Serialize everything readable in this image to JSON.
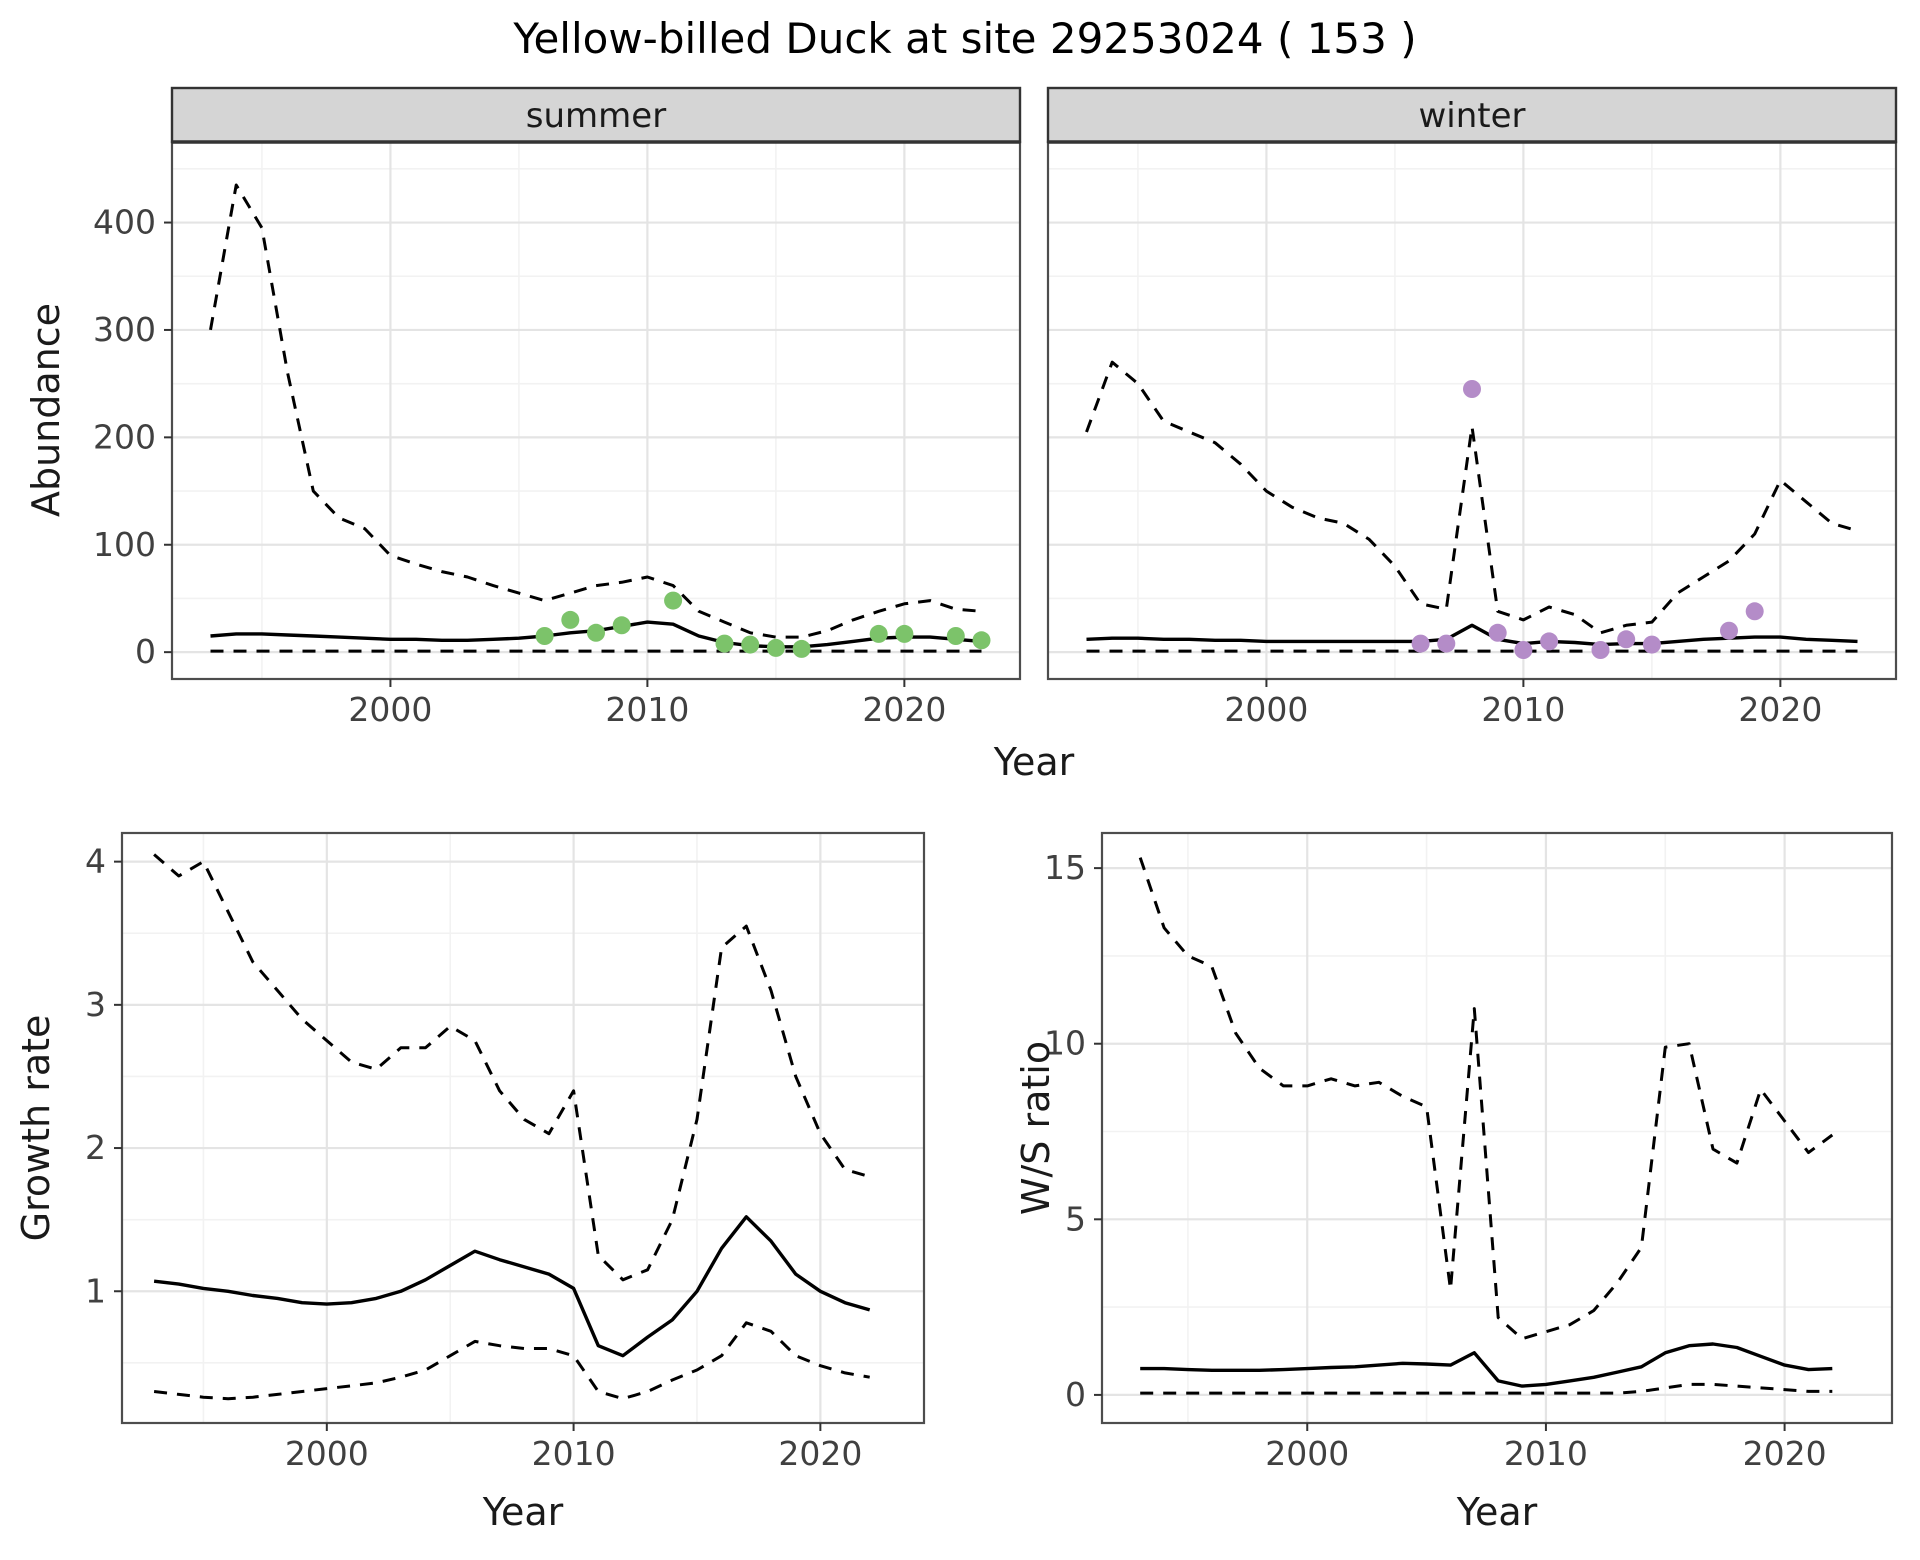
{
  "title": "Yellow-billed Duck at site 29253024 ( 153 )",
  "colors": {
    "line": "#000000",
    "grid_major": "#E4E4E4",
    "grid_minor": "#F2F2F2",
    "panel_border": "#4D4D4D",
    "strip_background": "#D5D5D5",
    "strip_border": "#333333",
    "tick_text": "#404040",
    "summer_point": "#7CC36A",
    "winter_point": "#B48CC8"
  },
  "chart_data": [
    {
      "id": "abundance-summer",
      "type": "line",
      "facet_label": "summer",
      "xlabel": "Year",
      "ylabel": "Abundance",
      "x_domain": [
        1991.5,
        2024.5
      ],
      "y_domain": [
        -25,
        475
      ],
      "x_ticks": [
        2000,
        2010,
        2020
      ],
      "y_ticks": [
        0,
        100,
        200,
        300,
        400
      ],
      "series": [
        {
          "name": "upper-ci",
          "style": "dashed",
          "x": [
            1993,
            1994,
            1995,
            1996,
            1997,
            1998,
            1999,
            2000,
            2001,
            2002,
            2003,
            2004,
            2005,
            2006,
            2007,
            2008,
            2009,
            2010,
            2011,
            2012,
            2013,
            2014,
            2015,
            2016,
            2017,
            2018,
            2019,
            2020,
            2021,
            2022,
            2023
          ],
          "y": [
            300,
            435,
            395,
            260,
            150,
            125,
            115,
            90,
            82,
            75,
            70,
            62,
            55,
            48,
            55,
            62,
            65,
            70,
            62,
            38,
            28,
            18,
            14,
            14,
            20,
            30,
            38,
            45,
            48,
            40,
            38
          ]
        },
        {
          "name": "mean",
          "style": "solid",
          "x": [
            1993,
            1994,
            1995,
            1996,
            1997,
            1998,
            1999,
            2000,
            2001,
            2002,
            2003,
            2004,
            2005,
            2006,
            2007,
            2008,
            2009,
            2010,
            2011,
            2012,
            2013,
            2014,
            2015,
            2016,
            2017,
            2018,
            2019,
            2020,
            2021,
            2022,
            2023
          ],
          "y": [
            15,
            17,
            17,
            16,
            15,
            14,
            13,
            12,
            12,
            11,
            11,
            12,
            13,
            15,
            18,
            20,
            24,
            28,
            26,
            15,
            9,
            6,
            5,
            5,
            7,
            10,
            13,
            14,
            14,
            12,
            10
          ]
        },
        {
          "name": "lower-ci",
          "style": "dashed",
          "x": [
            1993,
            1994,
            1995,
            1996,
            1997,
            1998,
            1999,
            2000,
            2001,
            2002,
            2003,
            2004,
            2005,
            2006,
            2007,
            2008,
            2009,
            2010,
            2011,
            2012,
            2013,
            2014,
            2015,
            2016,
            2017,
            2018,
            2019,
            2020,
            2021,
            2022,
            2023
          ],
          "y": [
            1,
            1,
            1,
            1,
            1,
            1,
            1,
            1,
            1,
            1,
            1,
            1,
            1,
            1,
            1,
            1,
            1,
            1,
            1,
            1,
            1,
            1,
            1,
            1,
            1,
            1,
            1,
            1,
            1,
            1,
            1
          ]
        }
      ],
      "points": {
        "name": "observed",
        "color": "#7CC36A",
        "x": [
          2006,
          2007,
          2008,
          2009,
          2011,
          2013,
          2014,
          2015,
          2016,
          2019,
          2020,
          2022,
          2023
        ],
        "y": [
          15,
          30,
          18,
          25,
          48,
          8,
          7,
          4,
          3,
          17,
          17,
          15,
          11
        ]
      }
    },
    {
      "id": "abundance-winter",
      "type": "line",
      "facet_label": "winter",
      "xlabel": "Year",
      "ylabel": "Abundance",
      "x_domain": [
        1991.5,
        2024.5
      ],
      "y_domain": [
        -25,
        475
      ],
      "x_ticks": [
        2000,
        2010,
        2020
      ],
      "y_ticks": [
        0,
        100,
        200,
        300,
        400
      ],
      "series": [
        {
          "name": "upper-ci",
          "style": "dashed",
          "x": [
            1993,
            1994,
            1995,
            1996,
            1997,
            1998,
            1999,
            2000,
            2001,
            2002,
            2003,
            2004,
            2005,
            2006,
            2007,
            2008,
            2009,
            2010,
            2011,
            2012,
            2013,
            2014,
            2015,
            2016,
            2017,
            2018,
            2019,
            2020,
            2021,
            2022,
            2023
          ],
          "y": [
            205,
            270,
            250,
            215,
            205,
            195,
            175,
            150,
            135,
            125,
            120,
            105,
            80,
            45,
            40,
            210,
            38,
            30,
            42,
            35,
            18,
            25,
            28,
            55,
            70,
            85,
            110,
            160,
            140,
            120,
            113
          ]
        },
        {
          "name": "mean",
          "style": "solid",
          "x": [
            1993,
            1994,
            1995,
            1996,
            1997,
            1998,
            1999,
            2000,
            2001,
            2002,
            2003,
            2004,
            2005,
            2006,
            2007,
            2008,
            2009,
            2010,
            2011,
            2012,
            2013,
            2014,
            2015,
            2016,
            2017,
            2018,
            2019,
            2020,
            2021,
            2022,
            2023
          ],
          "y": [
            12,
            13,
            13,
            12,
            12,
            11,
            11,
            10,
            10,
            10,
            10,
            10,
            10,
            10,
            12,
            25,
            12,
            8,
            10,
            9,
            7,
            8,
            8,
            10,
            12,
            13,
            14,
            14,
            12,
            11,
            10
          ]
        },
        {
          "name": "lower-ci",
          "style": "dashed",
          "x": [
            1993,
            1994,
            1995,
            1996,
            1997,
            1998,
            1999,
            2000,
            2001,
            2002,
            2003,
            2004,
            2005,
            2006,
            2007,
            2008,
            2009,
            2010,
            2011,
            2012,
            2013,
            2014,
            2015,
            2016,
            2017,
            2018,
            2019,
            2020,
            2021,
            2022,
            2023
          ],
          "y": [
            1,
            1,
            1,
            1,
            1,
            1,
            1,
            1,
            1,
            1,
            1,
            1,
            1,
            1,
            1,
            1,
            1,
            1,
            1,
            1,
            1,
            1,
            1,
            1,
            1,
            1,
            1,
            1,
            1,
            1,
            1
          ]
        }
      ],
      "points": {
        "name": "observed",
        "color": "#B48CC8",
        "x": [
          2006,
          2007,
          2008,
          2009,
          2010,
          2011,
          2013,
          2014,
          2015,
          2018,
          2019
        ],
        "y": [
          8,
          8,
          245,
          18,
          2,
          10,
          2,
          12,
          7,
          20,
          38
        ]
      }
    },
    {
      "id": "growth-rate",
      "type": "line",
      "xlabel": "Year",
      "ylabel": "Growth rate",
      "x_domain": [
        1991.7,
        2024.2
      ],
      "y_domain": [
        0.08,
        4.2
      ],
      "x_ticks": [
        2000,
        2010,
        2020
      ],
      "y_ticks": [
        1,
        2,
        3,
        4
      ],
      "series": [
        {
          "name": "upper-ci",
          "style": "dashed",
          "x": [
            1993,
            1994,
            1995,
            1996,
            1997,
            1998,
            1999,
            2000,
            2001,
            2002,
            2003,
            2004,
            2005,
            2006,
            2007,
            2008,
            2009,
            2010,
            2011,
            2012,
            2013,
            2014,
            2015,
            2016,
            2017,
            2018,
            2019,
            2020,
            2021,
            2022
          ],
          "y": [
            4.05,
            3.9,
            4.0,
            3.65,
            3.3,
            3.1,
            2.9,
            2.75,
            2.6,
            2.55,
            2.7,
            2.7,
            2.85,
            2.75,
            2.4,
            2.2,
            2.1,
            2.4,
            1.25,
            1.08,
            1.15,
            1.5,
            2.2,
            3.4,
            3.55,
            3.1,
            2.5,
            2.1,
            1.85,
            1.8
          ]
        },
        {
          "name": "mean",
          "style": "solid",
          "x": [
            1993,
            1994,
            1995,
            1996,
            1997,
            1998,
            1999,
            2000,
            2001,
            2002,
            2003,
            2004,
            2005,
            2006,
            2007,
            2008,
            2009,
            2010,
            2011,
            2012,
            2013,
            2014,
            2015,
            2016,
            2017,
            2018,
            2019,
            2020,
            2021,
            2022
          ],
          "y": [
            1.07,
            1.05,
            1.02,
            1.0,
            0.97,
            0.95,
            0.92,
            0.91,
            0.92,
            0.95,
            1.0,
            1.08,
            1.18,
            1.28,
            1.22,
            1.17,
            1.12,
            1.02,
            0.62,
            0.55,
            0.68,
            0.8,
            1.0,
            1.3,
            1.52,
            1.35,
            1.12,
            1.0,
            0.92,
            0.87
          ]
        },
        {
          "name": "lower-ci",
          "style": "dashed",
          "x": [
            1993,
            1994,
            1995,
            1996,
            1997,
            1998,
            1999,
            2000,
            2001,
            2002,
            2003,
            2004,
            2005,
            2006,
            2007,
            2008,
            2009,
            2010,
            2011,
            2012,
            2013,
            2014,
            2015,
            2016,
            2017,
            2018,
            2019,
            2020,
            2021,
            2022
          ],
          "y": [
            0.3,
            0.28,
            0.26,
            0.25,
            0.26,
            0.28,
            0.3,
            0.32,
            0.34,
            0.36,
            0.4,
            0.45,
            0.55,
            0.65,
            0.62,
            0.6,
            0.6,
            0.55,
            0.3,
            0.25,
            0.3,
            0.38,
            0.45,
            0.55,
            0.78,
            0.72,
            0.55,
            0.48,
            0.43,
            0.4
          ]
        }
      ]
    },
    {
      "id": "ws-ratio",
      "type": "line",
      "xlabel": "Year",
      "ylabel": "W/S ratio",
      "x_domain": [
        1991.4,
        2024.5
      ],
      "y_domain": [
        -0.8,
        16
      ],
      "x_ticks": [
        2000,
        2010,
        2020
      ],
      "y_ticks": [
        0,
        5,
        10,
        15
      ],
      "series": [
        {
          "name": "upper-ci",
          "style": "dashed",
          "x": [
            1993,
            1994,
            1995,
            1996,
            1997,
            1998,
            1999,
            2000,
            2001,
            2002,
            2003,
            2004,
            2005,
            2006,
            2007,
            2008,
            2009,
            2010,
            2011,
            2012,
            2013,
            2014,
            2015,
            2016,
            2017,
            2018,
            2019,
            2020,
            2021,
            2022
          ],
          "y": [
            15.3,
            13.3,
            12.5,
            12.2,
            10.3,
            9.3,
            8.8,
            8.8,
            9.0,
            8.8,
            8.9,
            8.5,
            8.2,
            3.0,
            11.0,
            2.2,
            1.6,
            1.8,
            2.0,
            2.4,
            3.2,
            4.2,
            9.9,
            10.0,
            7.0,
            6.6,
            8.7,
            7.8,
            6.9,
            7.4
          ]
        },
        {
          "name": "mean",
          "style": "solid",
          "x": [
            1993,
            1994,
            1995,
            1996,
            1997,
            1998,
            1999,
            2000,
            2001,
            2002,
            2003,
            2004,
            2005,
            2006,
            2007,
            2008,
            2009,
            2010,
            2011,
            2012,
            2013,
            2014,
            2015,
            2016,
            2017,
            2018,
            2019,
            2020,
            2021,
            2022
          ],
          "y": [
            0.75,
            0.75,
            0.72,
            0.7,
            0.7,
            0.7,
            0.72,
            0.75,
            0.78,
            0.8,
            0.85,
            0.9,
            0.88,
            0.85,
            1.2,
            0.4,
            0.25,
            0.3,
            0.4,
            0.5,
            0.65,
            0.8,
            1.2,
            1.4,
            1.45,
            1.35,
            1.1,
            0.85,
            0.72,
            0.75
          ]
        },
        {
          "name": "lower-ci",
          "style": "dashed",
          "x": [
            1993,
            1994,
            1995,
            1996,
            1997,
            1998,
            1999,
            2000,
            2001,
            2002,
            2003,
            2004,
            2005,
            2006,
            2007,
            2008,
            2009,
            2010,
            2011,
            2012,
            2013,
            2014,
            2015,
            2016,
            2017,
            2018,
            2019,
            2020,
            2021,
            2022
          ],
          "y": [
            0.05,
            0.05,
            0.05,
            0.05,
            0.05,
            0.05,
            0.05,
            0.05,
            0.05,
            0.05,
            0.05,
            0.05,
            0.05,
            0.05,
            0.05,
            0.05,
            0.05,
            0.05,
            0.05,
            0.05,
            0.05,
            0.1,
            0.2,
            0.3,
            0.3,
            0.25,
            0.2,
            0.15,
            0.1,
            0.1
          ]
        }
      ]
    }
  ]
}
